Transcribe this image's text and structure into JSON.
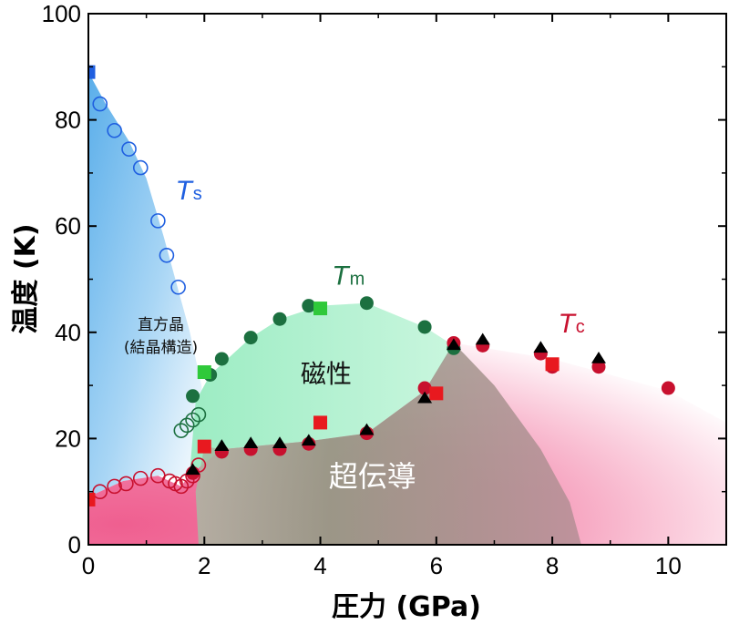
{
  "chart_data": {
    "type": "scatter",
    "xlabel": "圧力 (GPa)",
    "ylabel": "温度 (K)",
    "xlim": [
      0,
      11
    ],
    "ylim": [
      0,
      100
    ],
    "x_ticks": [
      "0",
      "2",
      "4",
      "6",
      "8",
      "10"
    ],
    "y_ticks": [
      "0",
      "20",
      "40",
      "60",
      "80",
      "100"
    ],
    "x_tick_values": [
      0,
      2,
      4,
      6,
      8,
      10
    ],
    "y_tick_values": [
      0,
      20,
      40,
      60,
      80,
      100
    ],
    "colors": {
      "ortho": "#6fb8ee",
      "magnetic": "#a7efc9",
      "super": "#f07aa1",
      "overlap": "#8fa086",
      "ts_blue": "#1f5fe0",
      "tm_green": "#1c7040",
      "tc_red": "#c8102e",
      "green_square": "#2fc93a",
      "red_square": "#e8191f"
    },
    "region_labels": {
      "orthorhombic_line1": "直方晶",
      "orthorhombic_line2": "(結晶構造)",
      "magnetic": "磁性",
      "superconducting": "超伝導"
    },
    "series_labels": {
      "ts": {
        "main": "T",
        "sub": "s"
      },
      "tm": {
        "main": "T",
        "sub": "m"
      },
      "tc": {
        "main": "T",
        "sub": "c"
      }
    },
    "series": [
      {
        "key": "ts_open",
        "marker": "open_circle",
        "color": "#1f5fe0",
        "points": [
          [
            0.2,
            83
          ],
          [
            0.45,
            78
          ],
          [
            0.7,
            74.5
          ],
          [
            0.9,
            71
          ],
          [
            1.2,
            61
          ],
          [
            1.35,
            54.5
          ],
          [
            1.55,
            48.5
          ]
        ]
      },
      {
        "key": "ts_square",
        "marker": "square",
        "color": "#1f5fe0",
        "points": [
          [
            0,
            89
          ]
        ]
      },
      {
        "key": "tm_filled",
        "marker": "filled_circle",
        "color": "#1c7040",
        "points": [
          [
            1.8,
            28
          ],
          [
            2.1,
            32
          ],
          [
            2.3,
            35
          ],
          [
            2.8,
            39
          ],
          [
            3.3,
            42.5
          ],
          [
            3.8,
            45
          ],
          [
            4.8,
            45.5
          ],
          [
            5.8,
            41
          ],
          [
            6.3,
            37
          ]
        ]
      },
      {
        "key": "tm_open",
        "marker": "open_circle",
        "color": "#1c7040",
        "points": [
          [
            1.6,
            21.5
          ],
          [
            1.7,
            22.5
          ],
          [
            1.8,
            23.5
          ],
          [
            1.9,
            24.5
          ]
        ]
      },
      {
        "key": "tm_square",
        "marker": "square",
        "color": "#2fc93a",
        "points": [
          [
            2.0,
            32.5
          ],
          [
            4.0,
            44.5
          ]
        ]
      },
      {
        "key": "tc_filled",
        "marker": "filled_circle",
        "color": "#c8102e",
        "points": [
          [
            1.8,
            13.5
          ],
          [
            2.3,
            17.5
          ],
          [
            2.8,
            18
          ],
          [
            3.3,
            18
          ],
          [
            3.8,
            19
          ],
          [
            4.8,
            21
          ],
          [
            5.8,
            29.5
          ],
          [
            6.3,
            38
          ],
          [
            6.8,
            37.5
          ],
          [
            7.8,
            36
          ],
          [
            8.0,
            33.5
          ],
          [
            8.8,
            33.5
          ],
          [
            10.0,
            29.5
          ]
        ]
      },
      {
        "key": "tc_open",
        "marker": "open_circle",
        "color": "#c8102e",
        "points": [
          [
            0.2,
            10
          ],
          [
            0.45,
            11
          ],
          [
            0.65,
            11.5
          ],
          [
            0.9,
            12.5
          ],
          [
            1.2,
            13
          ],
          [
            1.4,
            12
          ],
          [
            1.5,
            11.5
          ],
          [
            1.6,
            11
          ],
          [
            1.7,
            12
          ],
          [
            1.8,
            13
          ],
          [
            1.9,
            15
          ]
        ]
      },
      {
        "key": "tc_square",
        "marker": "square",
        "color": "#e8191f",
        "points": [
          [
            0,
            8.5
          ],
          [
            2.0,
            18.5
          ],
          [
            4.0,
            23
          ],
          [
            6.0,
            28.5
          ],
          [
            8.0,
            34
          ]
        ]
      },
      {
        "key": "triangles",
        "marker": "triangle",
        "color": "#000000",
        "points": [
          [
            1.8,
            14
          ],
          [
            2.3,
            18.5
          ],
          [
            2.8,
            19
          ],
          [
            3.3,
            19
          ],
          [
            3.8,
            19.5
          ],
          [
            4.8,
            21.5
          ],
          [
            5.8,
            27.5
          ],
          [
            6.3,
            37.5
          ],
          [
            6.8,
            38.5
          ],
          [
            7.8,
            37
          ],
          [
            8.8,
            35
          ]
        ]
      }
    ]
  }
}
